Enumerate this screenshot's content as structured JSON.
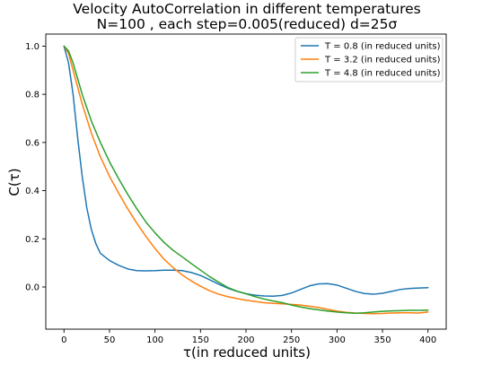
{
  "chart_data": {
    "type": "line",
    "title_line1": "Velocity AutoCorrelation in different temperatures",
    "title_line2": "N=100 , each step=0.005(reduced) d=25σ",
    "xlabel": "τ(in reduced units)",
    "ylabel": "C(τ)",
    "xlim": [
      -20,
      420
    ],
    "ylim": [
      -0.175,
      1.05
    ],
    "xticks": [
      0,
      50,
      100,
      150,
      200,
      250,
      300,
      350,
      400
    ],
    "yticks": [
      0.0,
      0.2,
      0.4,
      0.6,
      0.8,
      1.0
    ],
    "ytick_labels": [
      "0.0",
      "0.2",
      "0.4",
      "0.6",
      "0.8",
      "1.0"
    ],
    "legend_position": "top-right",
    "grid": false,
    "series": [
      {
        "name": "T = 0.8 (in reduced units)",
        "color": "#1f77b4",
        "x": [
          0,
          5,
          10,
          15,
          20,
          25,
          30,
          35,
          40,
          50,
          60,
          70,
          80,
          90,
          100,
          110,
          120,
          130,
          140,
          150,
          160,
          170,
          180,
          190,
          200,
          210,
          220,
          230,
          240,
          250,
          260,
          270,
          280,
          290,
          300,
          310,
          320,
          330,
          340,
          350,
          360,
          370,
          380,
          390,
          400
        ],
        "y": [
          1.0,
          0.93,
          0.8,
          0.62,
          0.46,
          0.33,
          0.24,
          0.18,
          0.14,
          0.11,
          0.09,
          0.075,
          0.068,
          0.067,
          0.068,
          0.07,
          0.07,
          0.068,
          0.06,
          0.048,
          0.03,
          0.012,
          -0.005,
          -0.018,
          -0.028,
          -0.034,
          -0.037,
          -0.038,
          -0.035,
          -0.025,
          -0.01,
          0.005,
          0.013,
          0.014,
          0.008,
          -0.005,
          -0.018,
          -0.027,
          -0.03,
          -0.026,
          -0.018,
          -0.01,
          -0.006,
          -0.004,
          -0.003
        ]
      },
      {
        "name": "T = 3.2 (in reduced units)",
        "color": "#ff7f0e",
        "x": [
          0,
          5,
          10,
          20,
          30,
          40,
          50,
          60,
          70,
          80,
          90,
          100,
          110,
          120,
          130,
          140,
          150,
          160,
          170,
          180,
          190,
          200,
          210,
          220,
          230,
          240,
          250,
          260,
          270,
          280,
          290,
          300,
          310,
          320,
          330,
          340,
          350,
          360,
          370,
          380,
          390,
          400
        ],
        "y": [
          1.0,
          0.97,
          0.9,
          0.76,
          0.64,
          0.54,
          0.46,
          0.39,
          0.325,
          0.265,
          0.21,
          0.16,
          0.115,
          0.08,
          0.05,
          0.025,
          0.003,
          -0.015,
          -0.03,
          -0.04,
          -0.048,
          -0.055,
          -0.06,
          -0.065,
          -0.068,
          -0.07,
          -0.072,
          -0.075,
          -0.08,
          -0.085,
          -0.093,
          -0.1,
          -0.105,
          -0.108,
          -0.11,
          -0.111,
          -0.11,
          -0.108,
          -0.107,
          -0.107,
          -0.108,
          -0.104
        ]
      },
      {
        "name": "T = 4.8 (in reduced units)",
        "color": "#2ca02c",
        "x": [
          0,
          5,
          10,
          20,
          30,
          40,
          50,
          60,
          70,
          80,
          90,
          100,
          110,
          120,
          130,
          140,
          150,
          160,
          170,
          180,
          190,
          200,
          210,
          220,
          230,
          240,
          250,
          260,
          270,
          280,
          290,
          300,
          310,
          320,
          330,
          340,
          350,
          360,
          370,
          380,
          390,
          400
        ],
        "y": [
          1.0,
          0.98,
          0.93,
          0.8,
          0.69,
          0.6,
          0.52,
          0.45,
          0.385,
          0.325,
          0.27,
          0.225,
          0.185,
          0.152,
          0.125,
          0.097,
          0.07,
          0.043,
          0.02,
          -0.002,
          -0.017,
          -0.028,
          -0.04,
          -0.05,
          -0.058,
          -0.065,
          -0.075,
          -0.083,
          -0.09,
          -0.095,
          -0.1,
          -0.104,
          -0.107,
          -0.109,
          -0.107,
          -0.104,
          -0.101,
          -0.099,
          -0.098,
          -0.097,
          -0.097,
          -0.096
        ]
      }
    ]
  }
}
